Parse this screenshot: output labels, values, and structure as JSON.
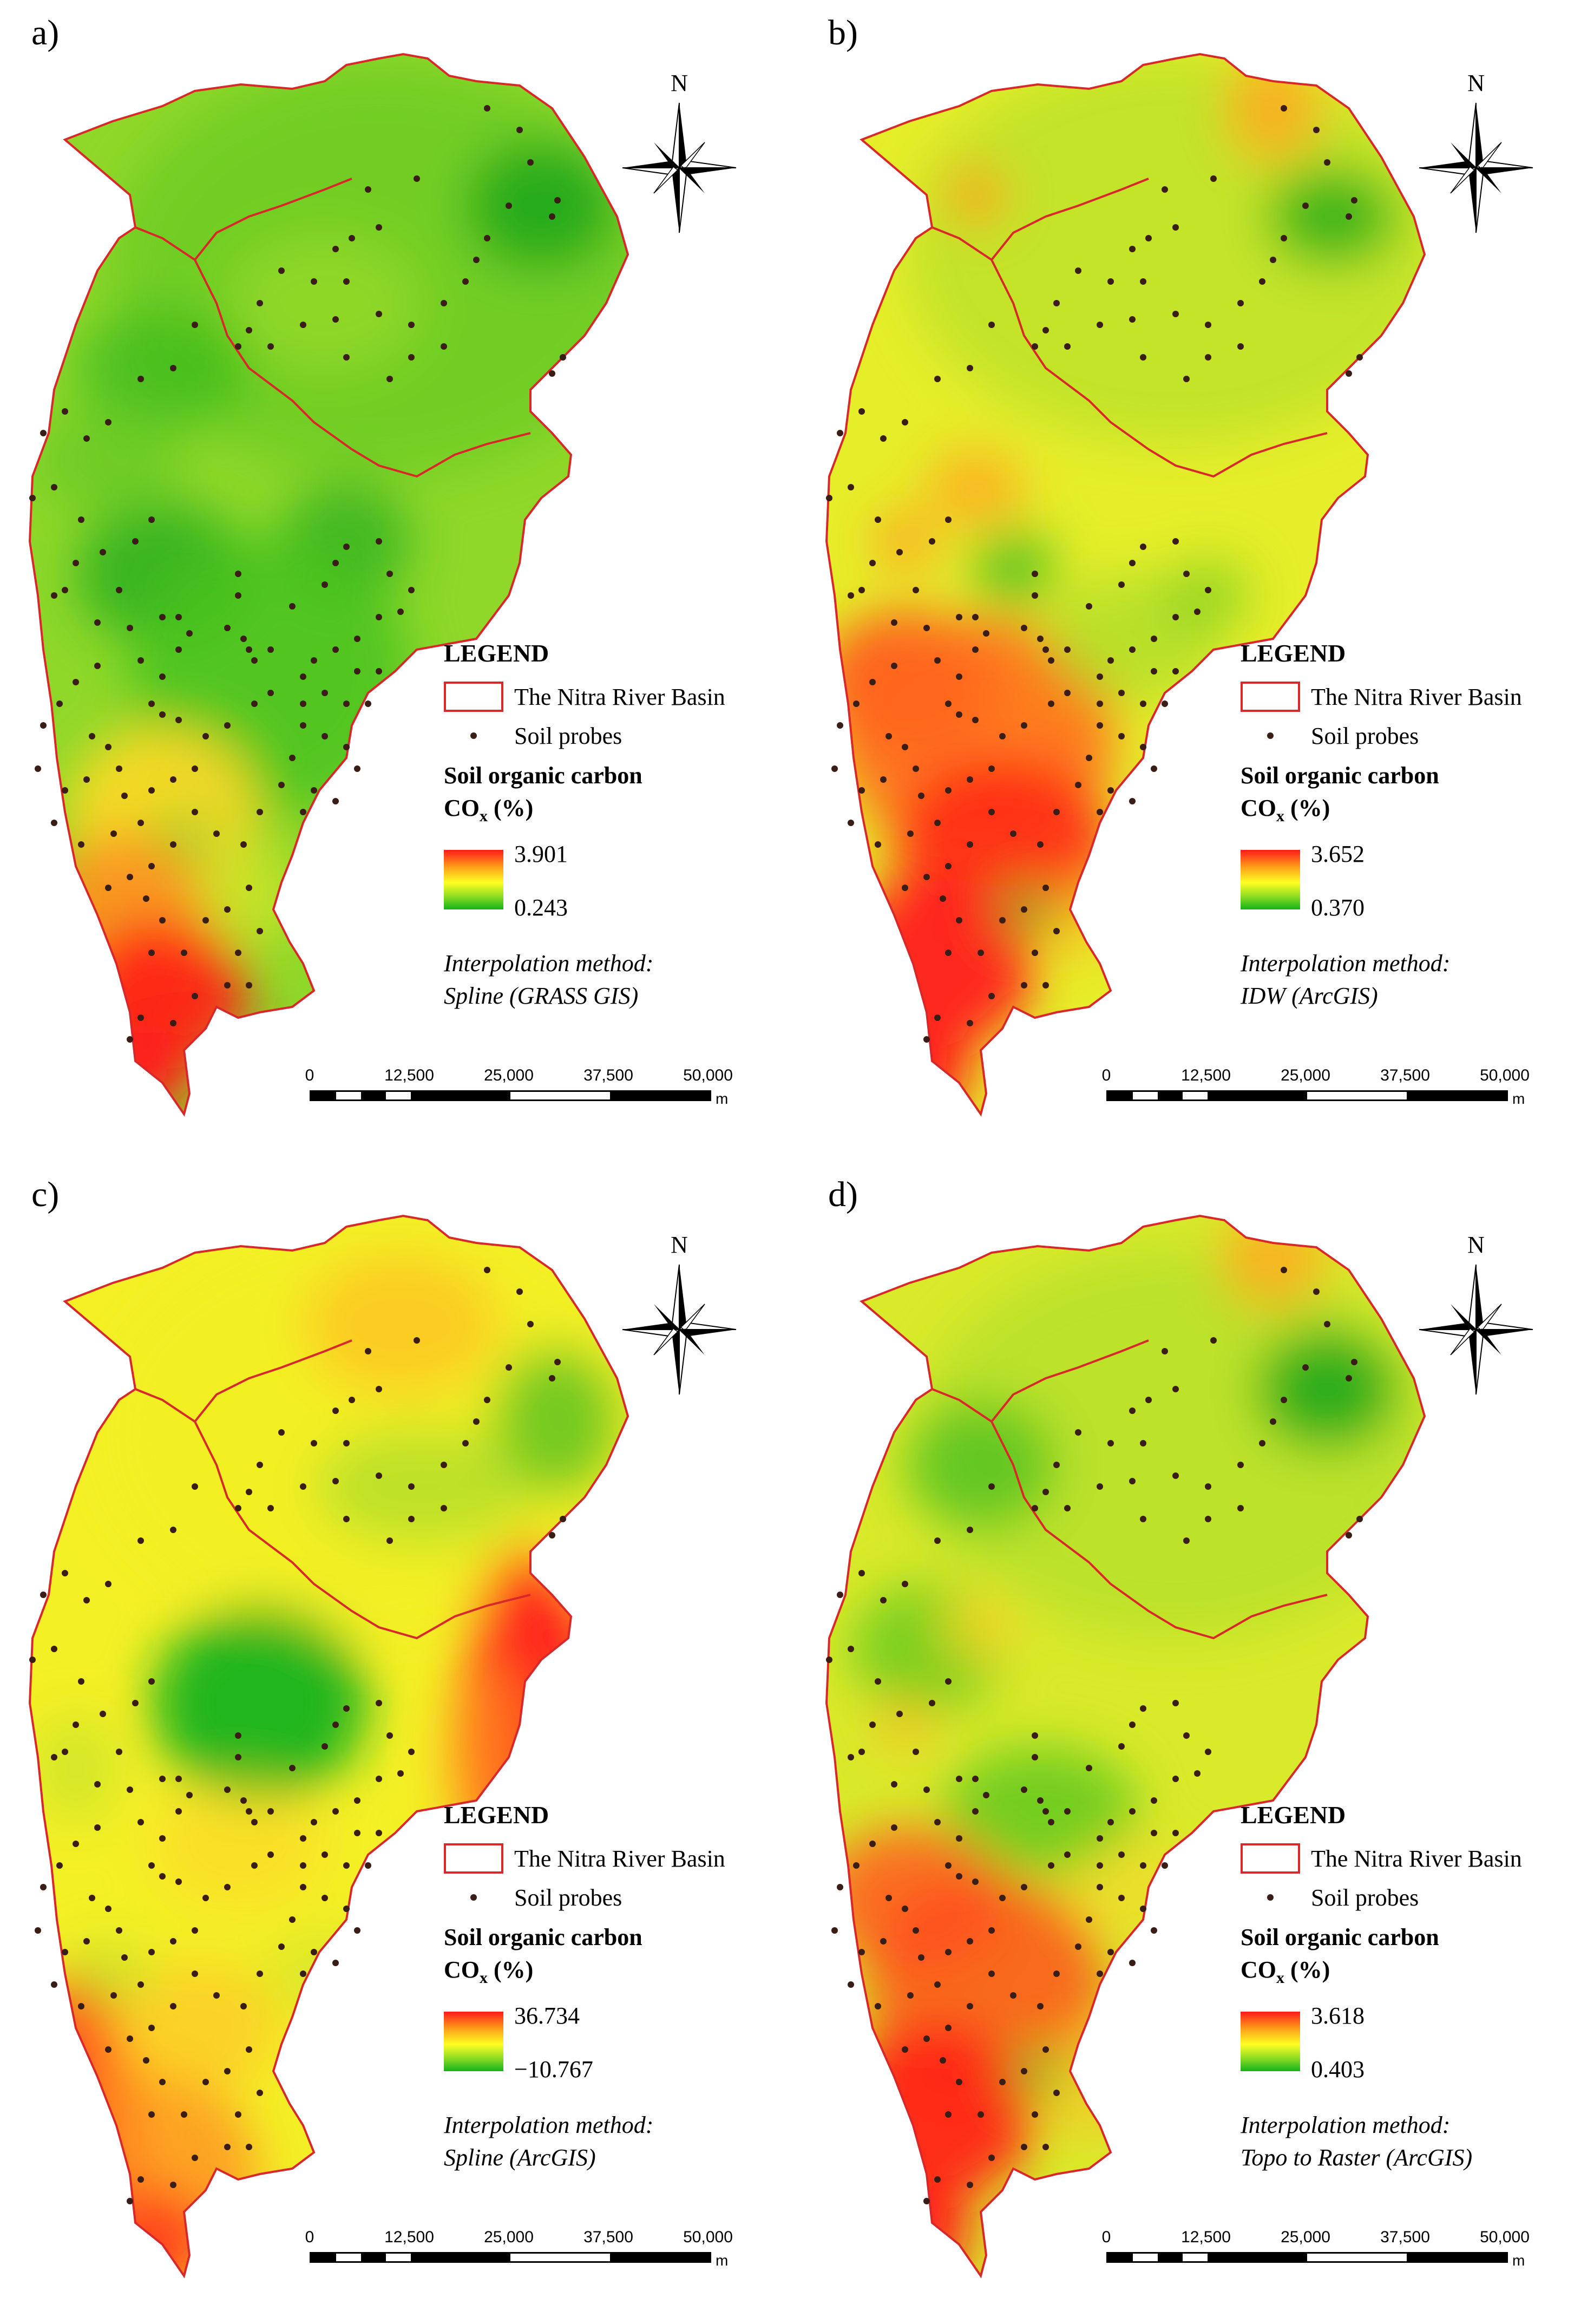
{
  "panels": [
    {
      "label": "a)",
      "method": "Spline (GRASS GIS)",
      "max": "3.901",
      "min": "0.243"
    },
    {
      "label": "b)",
      "method": "IDW (ArcGIS)",
      "max": "3.652",
      "min": "0.370"
    },
    {
      "label": "c)",
      "method": "Spline (ArcGIS)",
      "max": "36.734",
      "min": "−10.767"
    },
    {
      "label": "d)",
      "method": "Topo to Raster (ArcGIS)",
      "max": "3.618",
      "min": "0.403"
    }
  ],
  "legend": {
    "title": "LEGEND",
    "basin_label": "The Nitra River Basin",
    "probes_label": "Soil probes",
    "soc_title_line1": "Soil organic carbon",
    "soc_title_line2_main": "CO",
    "soc_title_line2_sub": "x",
    "soc_title_line2_end": " (%)",
    "method_heading": "Interpolation method:"
  },
  "compass": {
    "north": "N"
  },
  "scale": {
    "ticks": [
      "0",
      "12,500",
      "25,000",
      "37,500",
      "50,000"
    ],
    "unit": "m"
  },
  "colors": {
    "boundary": "#d8282a",
    "probe": "#3a1e16",
    "ramp_high": "#ff1a1a",
    "ramp_mid": "#ffff22",
    "ramp_low": "#14b21a"
  }
}
